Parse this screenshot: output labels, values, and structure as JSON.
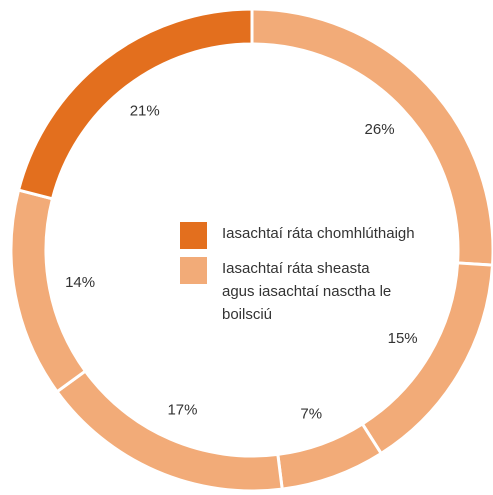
{
  "chart_data": {
    "type": "donut",
    "values": [
      26,
      15,
      7,
      17,
      14,
      21
    ],
    "value_labels": [
      "26%",
      "15%",
      "7%",
      "17%",
      "14%",
      "21%"
    ],
    "colors": [
      "#f2ab78",
      "#f2ab78",
      "#f2ab78",
      "#f2ab78",
      "#f2ab78",
      "#e36f1e"
    ],
    "legend": [
      {
        "name": "Iasachtaí ráta chomhlúthaigh",
        "color": "#e36f1e"
      },
      {
        "name": "Iasachtaí ráta sheasta agus iasachtaí nasctha le boilsciú",
        "color": "#f2ab78"
      }
    ]
  }
}
